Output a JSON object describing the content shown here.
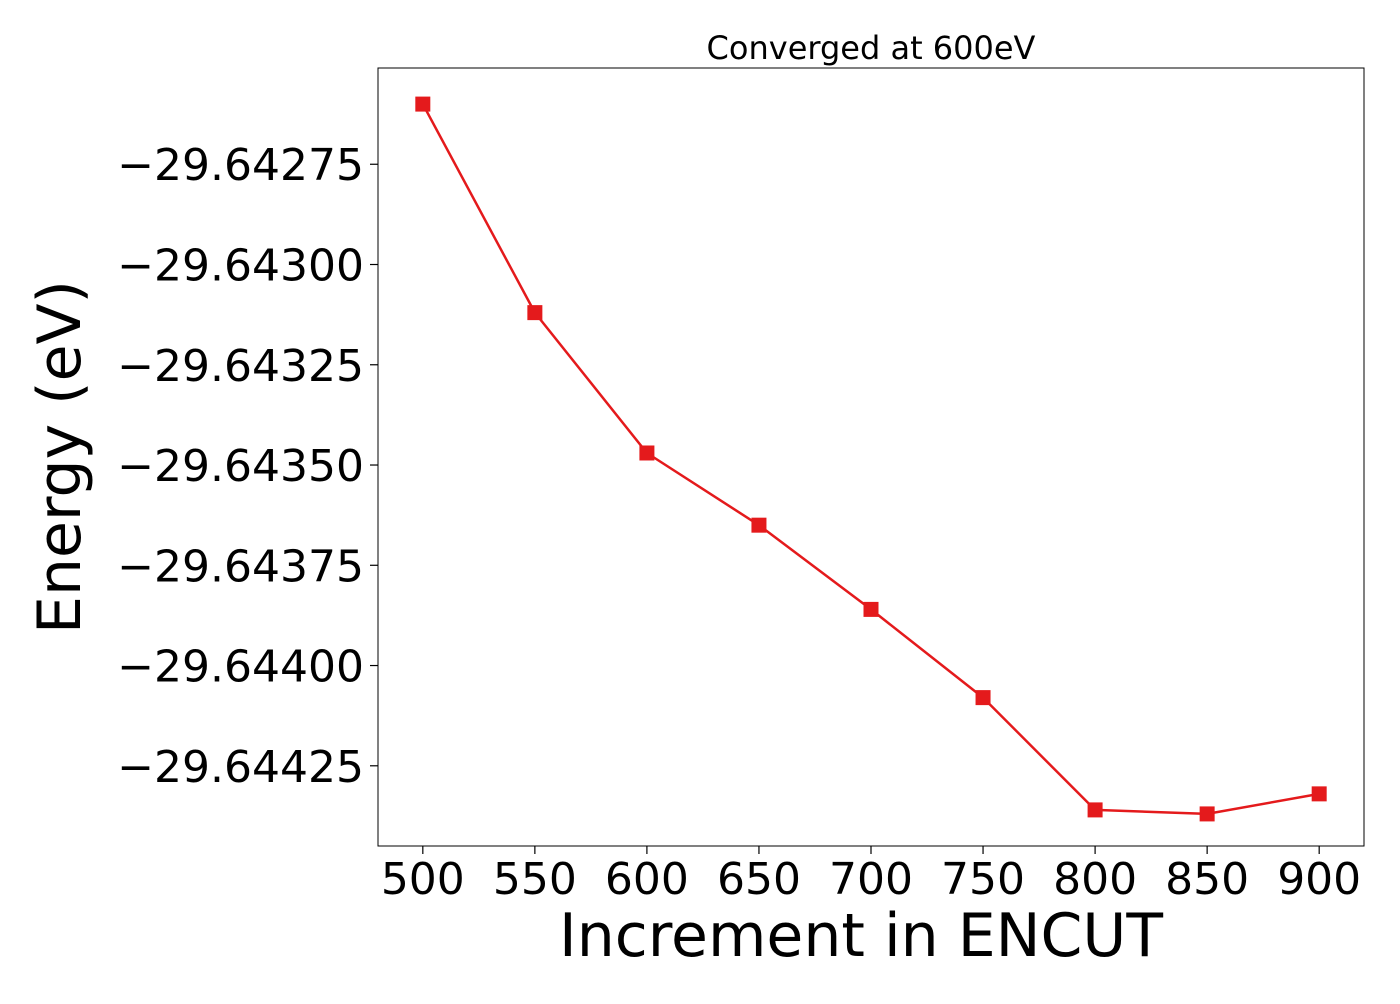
{
  "chart_data": {
    "type": "line",
    "title": "Converged at 600eV",
    "xlabel": "Increment in ENCUT",
    "ylabel": "Energy (eV)",
    "x": [
      500,
      550,
      600,
      650,
      700,
      750,
      800,
      850,
      900
    ],
    "series": [
      {
        "values": [
          -29.6426,
          -29.64312,
          -29.64347,
          -29.64365,
          -29.64386,
          -29.64408,
          -29.64436,
          -29.64437,
          -29.64432
        ],
        "color": "#e41a1c",
        "marker": "square"
      }
    ],
    "xticks": [
      500,
      550,
      600,
      650,
      700,
      750,
      800,
      850,
      900
    ],
    "xtick_labels": [
      "500",
      "550",
      "600",
      "650",
      "700",
      "750",
      "800",
      "850",
      "900"
    ],
    "yticks": [
      -29.64275,
      -29.643,
      -29.64325,
      -29.6435,
      -29.64375,
      -29.644,
      -29.64425
    ],
    "ytick_labels": [
      "−29.64275",
      "−29.64300",
      "−29.64325",
      "−29.64350",
      "−29.64375",
      "−29.64400",
      "−29.64425"
    ],
    "xlim": [
      480,
      920
    ],
    "ylim": [
      -29.64445,
      -29.64251
    ],
    "grid": false,
    "legend": false
  }
}
